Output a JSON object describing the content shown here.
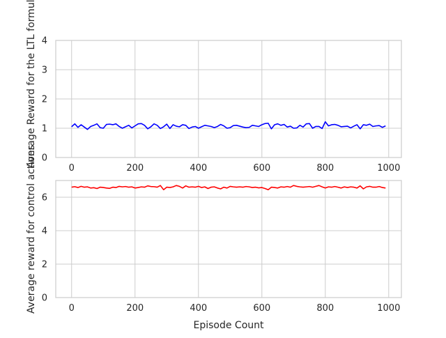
{
  "chart_data": [
    {
      "type": "line",
      "title": "",
      "xlabel": "",
      "ylabel": "Average Reward for the LTL formula",
      "xlim": [
        -50,
        1040
      ],
      "ylim": [
        0,
        4
      ],
      "xticks": [
        0,
        200,
        400,
        600,
        800,
        1000
      ],
      "yticks": [
        0,
        1,
        2,
        3,
        4
      ],
      "grid": true,
      "series": [
        {
          "color": "#0000ff",
          "x": [
            0,
            10,
            20,
            30,
            40,
            50,
            60,
            70,
            80,
            90,
            100,
            110,
            120,
            130,
            140,
            150,
            160,
            170,
            180,
            190,
            200,
            210,
            220,
            230,
            240,
            250,
            260,
            270,
            280,
            290,
            300,
            310,
            320,
            330,
            340,
            350,
            360,
            370,
            380,
            390,
            400,
            410,
            420,
            430,
            440,
            450,
            460,
            470,
            480,
            490,
            500,
            510,
            520,
            530,
            540,
            550,
            560,
            570,
            580,
            590,
            600,
            610,
            620,
            630,
            640,
            650,
            660,
            670,
            680,
            690,
            700,
            710,
            720,
            730,
            740,
            750,
            760,
            770,
            780,
            790,
            800,
            810,
            820,
            830,
            840,
            850,
            860,
            870,
            880,
            890,
            900,
            910,
            920,
            930,
            940,
            950,
            960,
            970,
            980,
            990
          ],
          "y": [
            1.05,
            1.15,
            1.03,
            1.12,
            1.04,
            0.96,
            1.06,
            1.1,
            1.15,
            1.02,
            1.0,
            1.13,
            1.14,
            1.12,
            1.15,
            1.06,
            1.0,
            1.05,
            1.1,
            1.01,
            1.08,
            1.15,
            1.16,
            1.1,
            0.98,
            1.05,
            1.15,
            1.1,
            0.99,
            1.05,
            1.14,
            0.99,
            1.12,
            1.07,
            1.05,
            1.12,
            1.1,
            0.99,
            1.04,
            1.06,
            1.0,
            1.05,
            1.1,
            1.08,
            1.06,
            1.02,
            1.06,
            1.13,
            1.08,
            1.0,
            1.02,
            1.09,
            1.1,
            1.07,
            1.04,
            1.02,
            1.03,
            1.1,
            1.08,
            1.06,
            1.12,
            1.16,
            1.17,
            0.98,
            1.12,
            1.15,
            1.1,
            1.13,
            1.04,
            1.07,
            1.0,
            1.01,
            1.1,
            1.04,
            1.15,
            1.16,
            1.0,
            1.06,
            1.06,
            0.99,
            1.22,
            1.08,
            1.12,
            1.13,
            1.1,
            1.05,
            1.06,
            1.07,
            1.01,
            1.07,
            1.12,
            0.98,
            1.12,
            1.1,
            1.14,
            1.06,
            1.08,
            1.09,
            1.03,
            1.08
          ]
        }
      ]
    },
    {
      "type": "line",
      "title": "",
      "xlabel": "Episode Count",
      "ylabel": "Average reward for control actions",
      "xlim": [
        -50,
        1040
      ],
      "ylim": [
        0,
        7
      ],
      "xticks": [
        0,
        200,
        400,
        600,
        800,
        1000
      ],
      "yticks": [
        0,
        2,
        4,
        6
      ],
      "grid": true,
      "series": [
        {
          "color": "#ff0000",
          "x": [
            0,
            10,
            20,
            30,
            40,
            50,
            60,
            70,
            80,
            90,
            100,
            110,
            120,
            130,
            140,
            150,
            160,
            170,
            180,
            190,
            200,
            210,
            220,
            230,
            240,
            250,
            260,
            270,
            280,
            290,
            300,
            310,
            320,
            330,
            340,
            350,
            360,
            370,
            380,
            390,
            400,
            410,
            420,
            430,
            440,
            450,
            460,
            470,
            480,
            490,
            500,
            510,
            520,
            530,
            540,
            550,
            560,
            570,
            580,
            590,
            600,
            610,
            620,
            630,
            640,
            650,
            660,
            670,
            680,
            690,
            700,
            710,
            720,
            730,
            740,
            750,
            760,
            770,
            780,
            790,
            800,
            810,
            820,
            830,
            840,
            850,
            860,
            870,
            880,
            890,
            900,
            910,
            920,
            930,
            940,
            950,
            960,
            970,
            980,
            990
          ],
          "y": [
            6.6,
            6.63,
            6.58,
            6.65,
            6.6,
            6.62,
            6.55,
            6.57,
            6.52,
            6.6,
            6.58,
            6.55,
            6.53,
            6.6,
            6.58,
            6.65,
            6.62,
            6.64,
            6.6,
            6.62,
            6.55,
            6.58,
            6.62,
            6.6,
            6.68,
            6.64,
            6.63,
            6.6,
            6.7,
            6.45,
            6.6,
            6.58,
            6.62,
            6.7,
            6.65,
            6.55,
            6.68,
            6.6,
            6.62,
            6.6,
            6.65,
            6.58,
            6.62,
            6.52,
            6.6,
            6.62,
            6.55,
            6.5,
            6.6,
            6.55,
            6.65,
            6.62,
            6.6,
            6.62,
            6.6,
            6.64,
            6.62,
            6.58,
            6.6,
            6.56,
            6.58,
            6.52,
            6.45,
            6.6,
            6.58,
            6.55,
            6.62,
            6.6,
            6.64,
            6.6,
            6.7,
            6.65,
            6.62,
            6.6,
            6.62,
            6.64,
            6.6,
            6.65,
            6.7,
            6.62,
            6.55,
            6.62,
            6.6,
            6.64,
            6.6,
            6.55,
            6.62,
            6.58,
            6.62,
            6.6,
            6.55,
            6.68,
            6.5,
            6.62,
            6.65,
            6.6,
            6.6,
            6.64,
            6.58,
            6.55
          ]
        }
      ]
    }
  ]
}
